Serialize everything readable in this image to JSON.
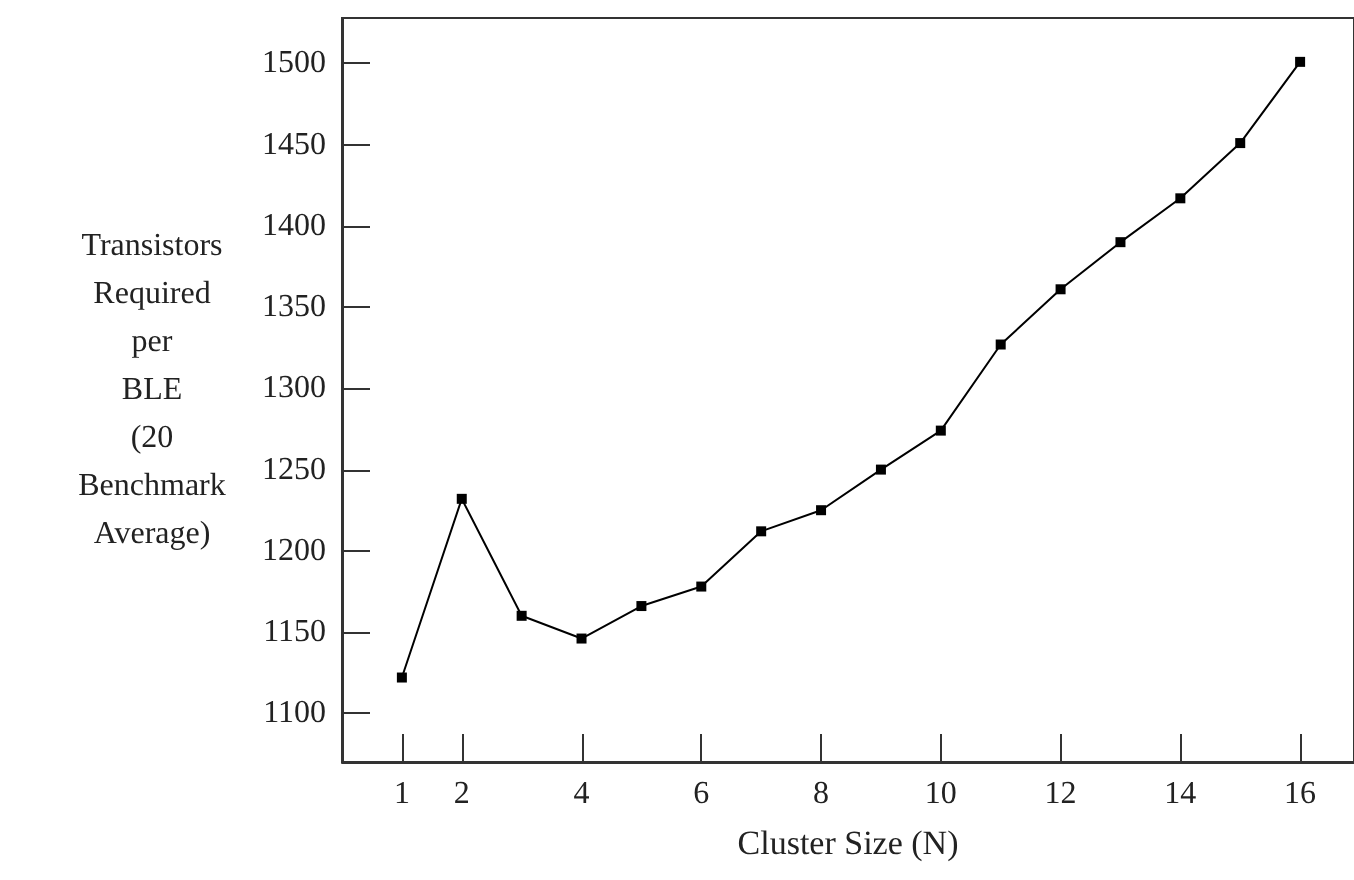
{
  "chart_data": {
    "type": "line",
    "xlabel": "Cluster Size (N)",
    "ylabel": "Transistors Required per BLE (20 Benchmark Average)",
    "x": [
      1,
      2,
      3,
      4,
      5,
      6,
      7,
      8,
      9,
      10,
      11,
      12,
      13,
      14,
      15,
      16
    ],
    "series": [
      {
        "color": "#000000",
        "values": [
          1122,
          1232,
          1160,
          1146,
          1166,
          1178,
          1212,
          1225,
          1250,
          1274,
          1327,
          1361,
          1390,
          1417,
          1451,
          1501
        ]
      }
    ],
    "xlim": [
      0,
      16.9
    ],
    "xticks": [
      1,
      2,
      4,
      6,
      8,
      10,
      12,
      14,
      16
    ],
    "ylim": [
      1070,
      1528
    ],
    "yticks": [
      1100,
      1150,
      1200,
      1250,
      1300,
      1350,
      1400,
      1450,
      1500
    ],
    "grid": false,
    "legend": false,
    "marker": "square",
    "line_style": "solid"
  }
}
